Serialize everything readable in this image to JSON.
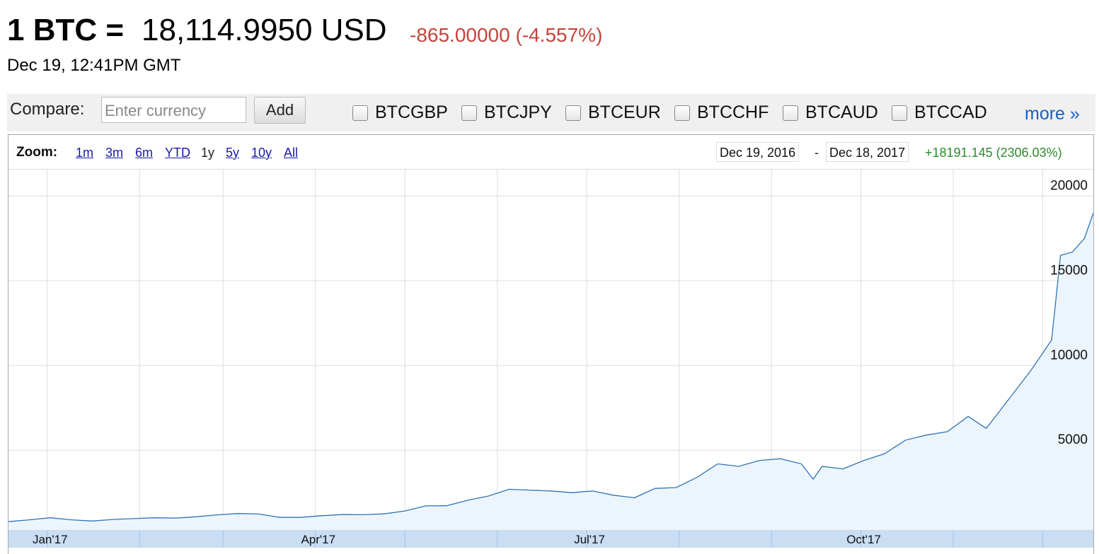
{
  "header": {
    "pair": "1 BTC =",
    "price": "18,114.9950 USD",
    "change": "-865.00000 (-4.557%)",
    "timestamp": "Dec 19, 12:41PM GMT"
  },
  "compare": {
    "label": "Compare:",
    "placeholder": "Enter currency",
    "button": "Add",
    "options": [
      "BTCGBP",
      "BTCJPY",
      "BTCEUR",
      "BTCCHF",
      "BTCAUD",
      "BTCCAD"
    ],
    "more": "more »"
  },
  "zoom": {
    "label": "Zoom:",
    "options": [
      "1m",
      "3m",
      "6m",
      "YTD",
      "1y",
      "5y",
      "10y",
      "All"
    ],
    "active": "1y"
  },
  "range": {
    "start": "Dec 19, 2016",
    "separator": "-",
    "end": "Dec 18, 2017",
    "change": "+18191.145 (2306.03%)"
  },
  "chart_data": {
    "type": "area",
    "color": "#2f74b5",
    "fill": "#edf5fc",
    "x": [
      "2016-12-19",
      "2016-12-26",
      "2017-01-02",
      "2017-01-09",
      "2017-01-16",
      "2017-01-23",
      "2017-01-30",
      "2017-02-06",
      "2017-02-13",
      "2017-02-20",
      "2017-02-27",
      "2017-03-06",
      "2017-03-13",
      "2017-03-20",
      "2017-03-27",
      "2017-04-03",
      "2017-04-10",
      "2017-04-17",
      "2017-04-24",
      "2017-05-01",
      "2017-05-08",
      "2017-05-15",
      "2017-05-22",
      "2017-05-29",
      "2017-06-05",
      "2017-06-12",
      "2017-06-19",
      "2017-06-26",
      "2017-07-03",
      "2017-07-10",
      "2017-07-17",
      "2017-07-24",
      "2017-07-31",
      "2017-08-07",
      "2017-08-14",
      "2017-08-21",
      "2017-08-28",
      "2017-09-04",
      "2017-09-11",
      "2017-09-15",
      "2017-09-18",
      "2017-09-25",
      "2017-10-02",
      "2017-10-09",
      "2017-10-16",
      "2017-10-23",
      "2017-10-30",
      "2017-11-06",
      "2017-11-12",
      "2017-11-13",
      "2017-11-20",
      "2017-11-27",
      "2017-12-04",
      "2017-12-07",
      "2017-12-11",
      "2017-12-15",
      "2017-12-18"
    ],
    "values": [
      790,
      900,
      1020,
      900,
      830,
      920,
      970,
      1020,
      1000,
      1080,
      1190,
      1270,
      1240,
      1040,
      1040,
      1140,
      1210,
      1200,
      1250,
      1420,
      1720,
      1730,
      2050,
      2300,
      2700,
      2650,
      2600,
      2500,
      2600,
      2350,
      2200,
      2750,
      2800,
      3400,
      4200,
      4050,
      4400,
      4500,
      4200,
      3300,
      4050,
      3900,
      4400,
      4800,
      5600,
      5900,
      6100,
      7000,
      6300,
      6500,
      8100,
      9700,
      11500,
      16500,
      16700,
      17500,
      19000
    ],
    "xlim": [
      "2016-12-19",
      "2017-12-18"
    ],
    "xticks": [
      {
        "value": "2017-01-01",
        "label": "Jan'17"
      },
      {
        "value": "2017-02-01",
        "label": null
      },
      {
        "value": "2017-03-01",
        "label": null
      },
      {
        "value": "2017-04-01",
        "label": "Apr'17"
      },
      {
        "value": "2017-05-01",
        "label": null
      },
      {
        "value": "2017-06-01",
        "label": null
      },
      {
        "value": "2017-07-01",
        "label": "Jul'17"
      },
      {
        "value": "2017-08-01",
        "label": null
      },
      {
        "value": "2017-09-01",
        "label": null
      },
      {
        "value": "2017-10-01",
        "label": "Oct'17"
      },
      {
        "value": "2017-11-01",
        "label": null
      },
      {
        "value": "2017-12-01",
        "label": null
      }
    ],
    "ylim": [
      300,
      21600
    ],
    "yticks": [
      5000,
      10000,
      15000,
      20000
    ],
    "grid": true
  }
}
